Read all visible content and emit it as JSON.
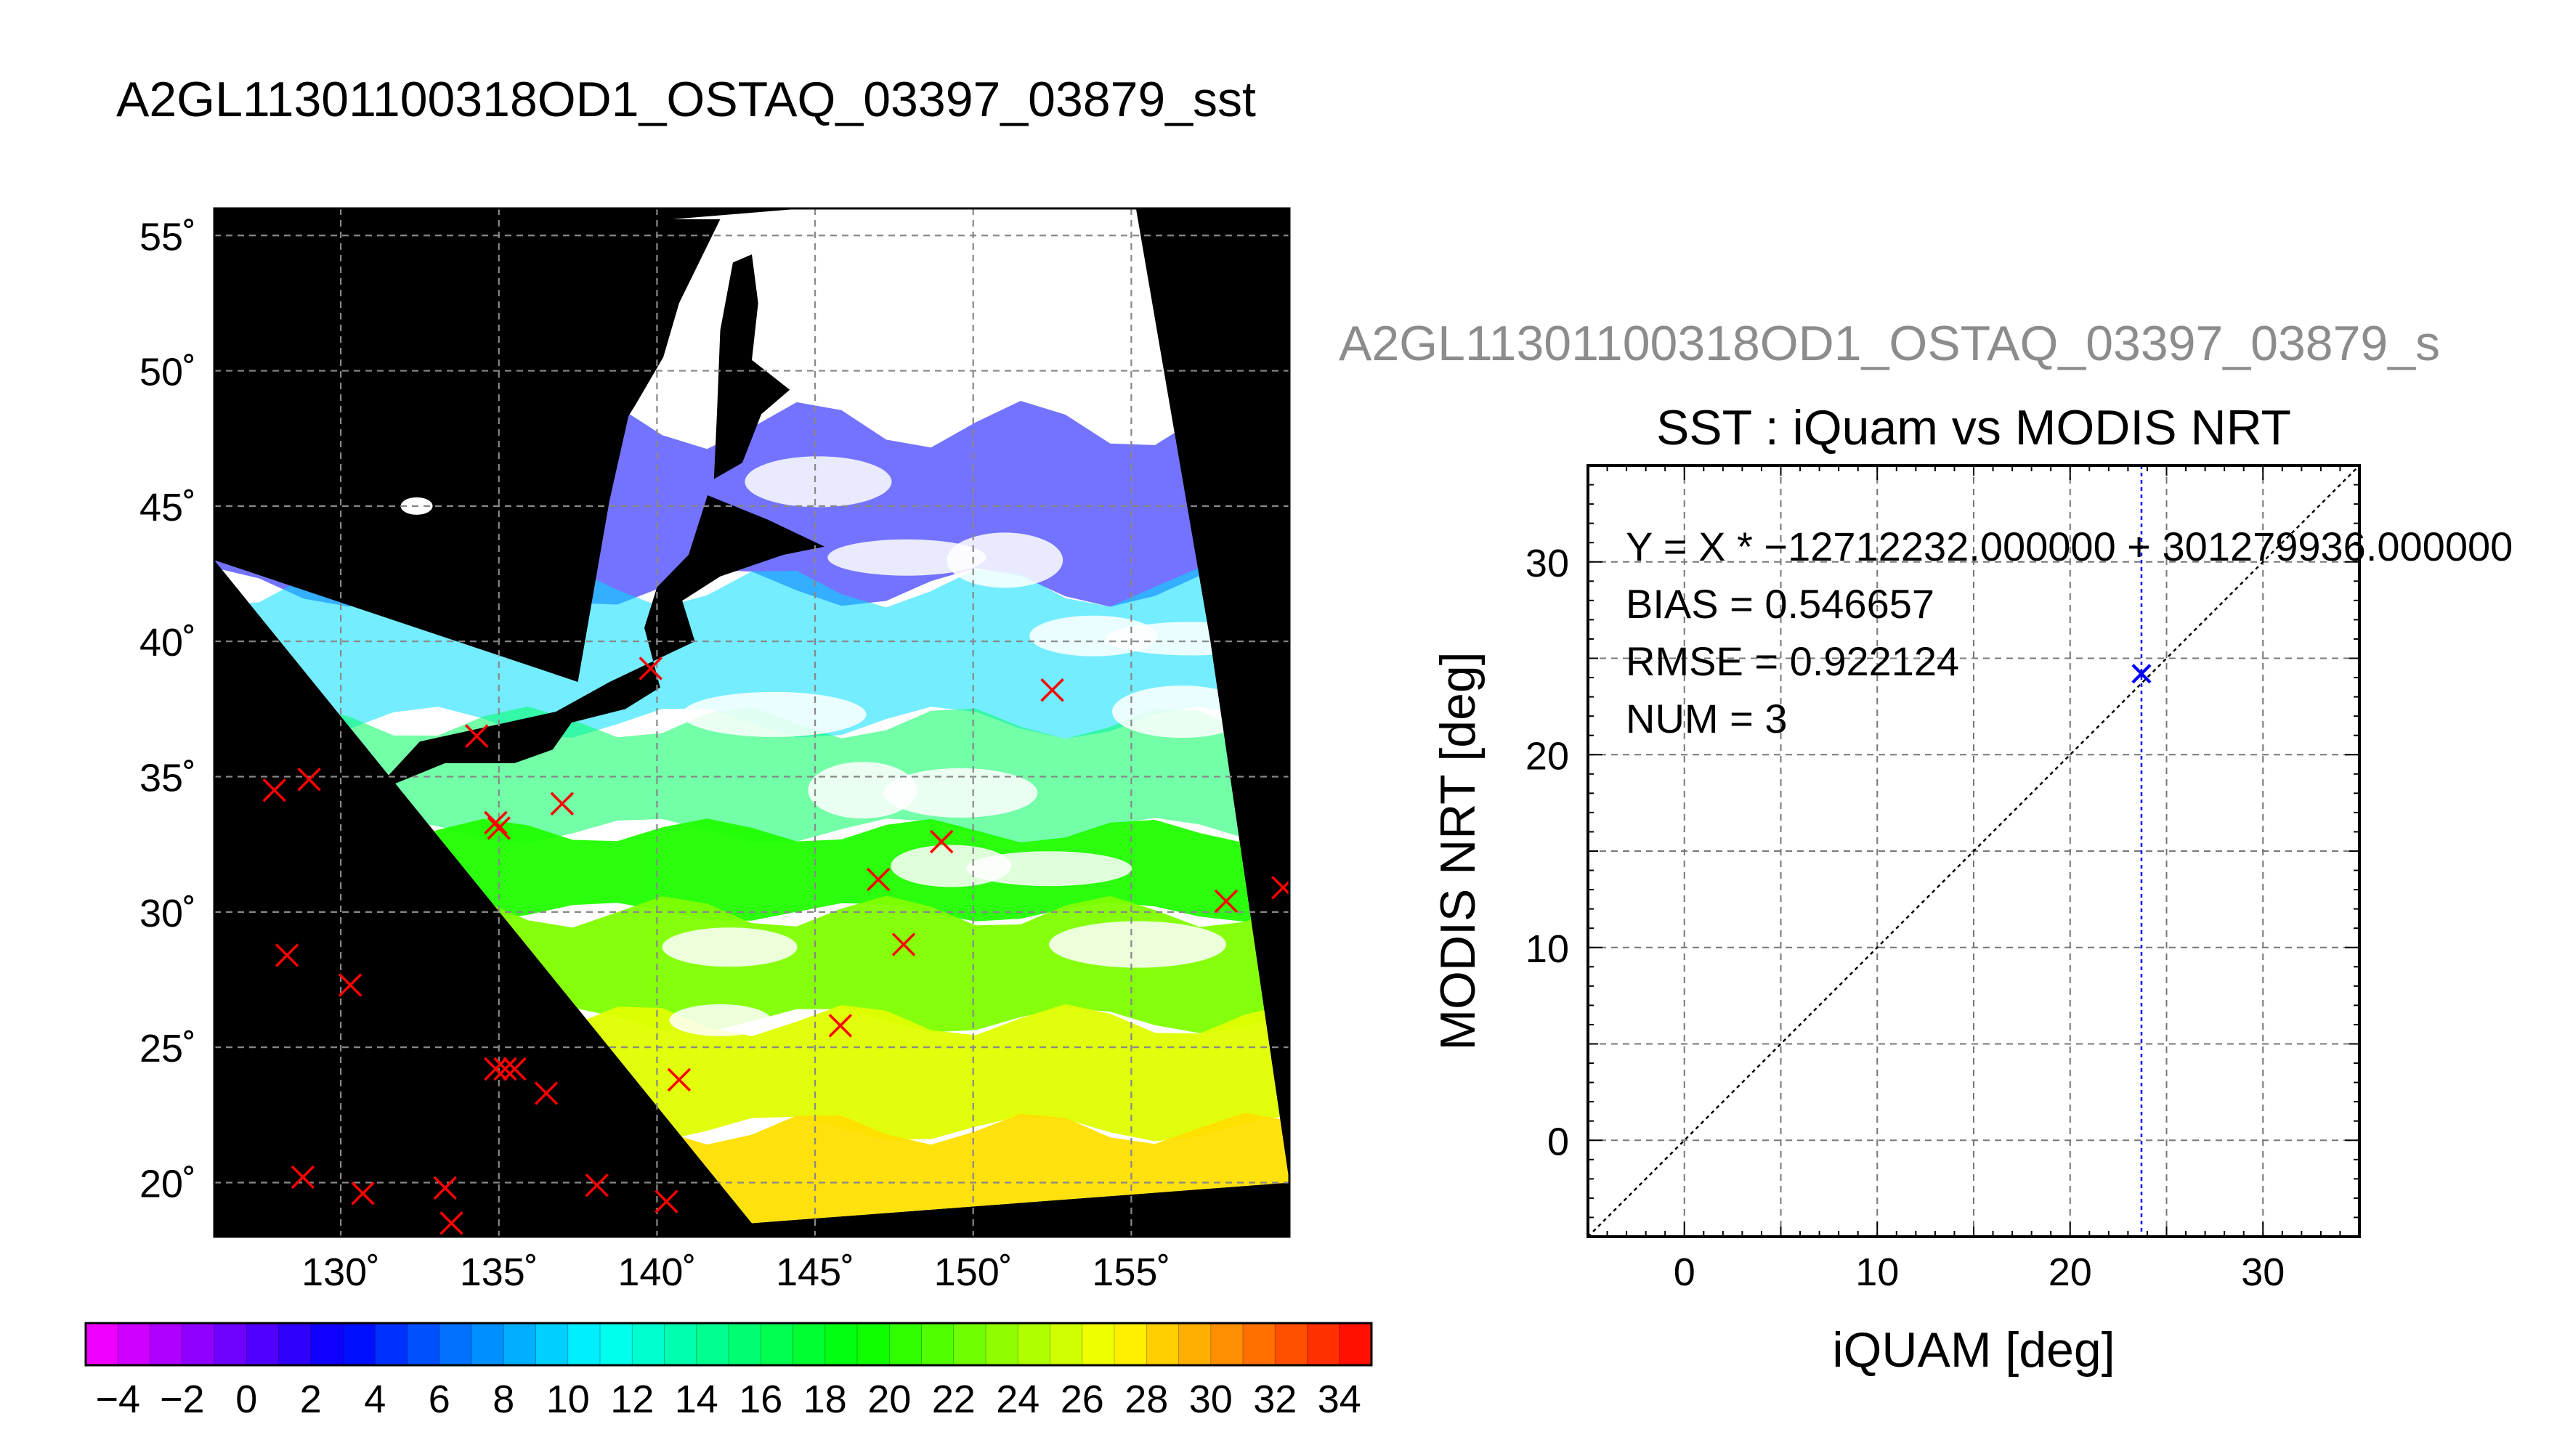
{
  "page_title": "A2GL11301100318OD1_OSTAQ_03397_03879_sst",
  "scatter_header": "A2GL11301100318OD1_OSTAQ_03397_03879_s",
  "chart_data": [
    {
      "type": "map",
      "title": "A2GL11301100318OD1_OSTAQ_03397_03879_sst",
      "lon_range": [
        126,
        160
      ],
      "lat_range": [
        18,
        56
      ],
      "lon_ticks": [
        130,
        135,
        140,
        145,
        150,
        155
      ],
      "lat_ticks": [
        20,
        25,
        30,
        35,
        40,
        45,
        50,
        55
      ],
      "lon_tick_labels": [
        "130˚",
        "135˚",
        "140˚",
        "145˚",
        "150˚",
        "155˚"
      ],
      "lat_tick_labels": [
        "20˚",
        "25˚",
        "30˚",
        "35˚",
        "40˚",
        "45˚",
        "50˚",
        "55˚"
      ],
      "grid": true,
      "swath_corners": [
        [
          126,
          43
        ],
        [
          143,
          18.5
        ],
        [
          155,
          57
        ],
        [
          160,
          20
        ]
      ],
      "sst_field_bands": [
        {
          "lat_min": 42,
          "lat_max": 48,
          "value": 3
        },
        {
          "lat_min": 37,
          "lat_max": 42,
          "value": 10
        },
        {
          "lat_min": 33,
          "lat_max": 37,
          "value": 16
        },
        {
          "lat_min": 30,
          "lat_max": 33,
          "value": 20
        },
        {
          "lat_min": 26,
          "lat_max": 30,
          "value": 23
        },
        {
          "lat_min": 22,
          "lat_max": 26,
          "value": 26
        },
        {
          "lat_min": 18,
          "lat_max": 22,
          "value": 28
        }
      ],
      "markers": [
        {
          "lon": 127.9,
          "lat": 34.5
        },
        {
          "lon": 129.0,
          "lat": 34.9
        },
        {
          "lon": 128.3,
          "lat": 28.4
        },
        {
          "lon": 130.3,
          "lat": 27.3
        },
        {
          "lon": 128.8,
          "lat": 20.2
        },
        {
          "lon": 130.7,
          "lat": 19.6
        },
        {
          "lon": 133.3,
          "lat": 19.8
        },
        {
          "lon": 133.5,
          "lat": 18.5
        },
        {
          "lon": 134.3,
          "lat": 36.5
        },
        {
          "lon": 134.9,
          "lat": 33.3
        },
        {
          "lon": 135.0,
          "lat": 33.1
        },
        {
          "lon": 134.9,
          "lat": 24.2
        },
        {
          "lon": 135.2,
          "lat": 24.2
        },
        {
          "lon": 135.5,
          "lat": 24.2
        },
        {
          "lon": 136.5,
          "lat": 23.3
        },
        {
          "lon": 137.0,
          "lat": 34.0
        },
        {
          "lon": 138.1,
          "lat": 19.9
        },
        {
          "lon": 139.8,
          "lat": 39.0
        },
        {
          "lon": 140.3,
          "lat": 19.3
        },
        {
          "lon": 140.7,
          "lat": 23.8
        },
        {
          "lon": 145.8,
          "lat": 25.8
        },
        {
          "lon": 147.0,
          "lat": 31.2
        },
        {
          "lon": 147.8,
          "lat": 28.8
        },
        {
          "lon": 149.0,
          "lat": 32.6
        },
        {
          "lon": 152.5,
          "lat": 38.2
        },
        {
          "lon": 158.0,
          "lat": 30.4
        },
        {
          "lon": 159.8,
          "lat": 30.9
        }
      ],
      "marker_color": "#ff0000",
      "land_color": "#000000",
      "cloud_color": "#ffffff"
    },
    {
      "type": "scatter",
      "title": "SST : iQuam vs MODIS NRT",
      "xlabel": "iQUAM [deg]",
      "ylabel": "MODIS NRT [deg]",
      "xlim": [
        -5,
        35
      ],
      "ylim": [
        -5,
        35
      ],
      "x_ticks": [
        0,
        10,
        20,
        30
      ],
      "y_ticks": [
        0,
        10,
        20,
        30
      ],
      "tick_labels": [
        "0",
        "10",
        "20",
        "30"
      ],
      "grid": true,
      "annotations": [
        "Y = X * −12712232.000000 + 301279936.000000",
        "BIAS = 0.546657",
        "RMSE = 0.922124",
        "NUM = 3"
      ],
      "series": [
        {
          "x": [
            23.7,
            23.7,
            23.7
          ],
          "y": [
            24.2,
            24.2,
            24.2
          ]
        }
      ],
      "vertical_line_x": 23.7,
      "identity_line": true,
      "point_color": "#0000ff"
    },
    {
      "type": "colorbar",
      "range": [
        -5,
        35
      ],
      "tick_labels": [
        "−4",
        "−2",
        "0",
        "2",
        "4",
        "6",
        "8",
        "10",
        "12",
        "14",
        "16",
        "18",
        "20",
        "22",
        "24",
        "26",
        "28",
        "30",
        "32",
        "34"
      ],
      "tick_values": [
        -4,
        -2,
        0,
        2,
        4,
        6,
        8,
        10,
        12,
        14,
        16,
        18,
        20,
        22,
        24,
        26,
        28,
        30,
        32,
        34
      ],
      "color_stops": [
        "#ff00ff",
        "#0000ff",
        "#00ffff",
        "#00ff00",
        "#ffff00",
        "#ff0000"
      ]
    }
  ]
}
